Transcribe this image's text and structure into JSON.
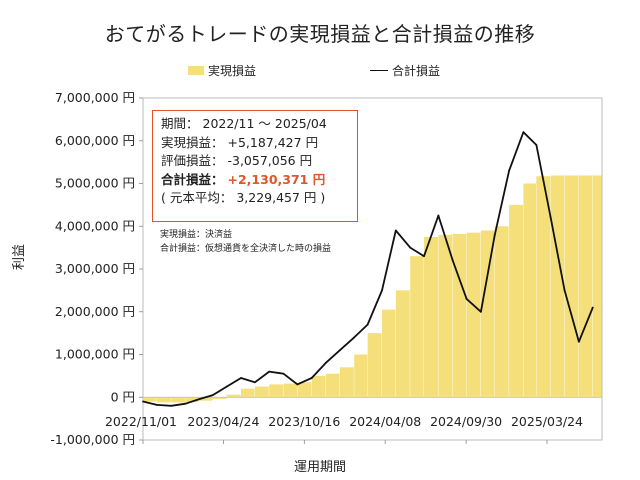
{
  "chart_data": {
    "type": "bar+line",
    "title": "おてがるトレードの実現損益と合計損益の推移",
    "xlabel": "運用期間",
    "ylabel": "利益",
    "ylim": [
      -1000000,
      7000000
    ],
    "y_ticks": [
      "7,000,000 円",
      "6,000,000 円",
      "5,000,000 円",
      "4,000,000 円",
      "3,000,000 円",
      "2,000,000 円",
      "1,000,000 円",
      "0 円",
      "-1,000,000 円"
    ],
    "y_tick_values": [
      7000000,
      6000000,
      5000000,
      4000000,
      3000000,
      2000000,
      1000000,
      0,
      -1000000
    ],
    "x_ticks": [
      "2022/11/01",
      "2023/04/24",
      "2023/10/16",
      "2024/04/08",
      "2024/09/30",
      "2025/03/24"
    ],
    "grid": false,
    "legend": {
      "position": "top",
      "bar_label": "実現損益",
      "line_label": "合計損益"
    },
    "colors": {
      "bar": "#f4df7a",
      "line": "#111111",
      "accent": "#e0552b"
    },
    "period": {
      "start": "2022/11/01",
      "end": "2025/07/21"
    },
    "series": [
      {
        "name": "実現損益",
        "type": "bar",
        "points": [
          [
            "2022/11/01",
            -100000
          ],
          [
            "2022/12/01",
            -120000
          ],
          [
            "2023/01/01",
            -120000
          ],
          [
            "2023/02/01",
            -110000
          ],
          [
            "2023/03/01",
            -80000
          ],
          [
            "2023/04/01",
            -40000
          ],
          [
            "2023/05/01",
            60000
          ],
          [
            "2023/06/01",
            200000
          ],
          [
            "2023/07/01",
            250000
          ],
          [
            "2023/08/01",
            300000
          ],
          [
            "2023/09/01",
            320000
          ],
          [
            "2023/10/01",
            350000
          ],
          [
            "2023/11/01",
            500000
          ],
          [
            "2023/12/01",
            550000
          ],
          [
            "2024/01/01",
            700000
          ],
          [
            "2024/02/01",
            1000000
          ],
          [
            "2024/03/01",
            1500000
          ],
          [
            "2024/04/01",
            2050000
          ],
          [
            "2024/05/01",
            2500000
          ],
          [
            "2024/06/01",
            3300000
          ],
          [
            "2024/07/01",
            3750000
          ],
          [
            "2024/08/01",
            3800000
          ],
          [
            "2024/09/01",
            3820000
          ],
          [
            "2024/10/01",
            3850000
          ],
          [
            "2024/11/01",
            3900000
          ],
          [
            "2024/12/01",
            4000000
          ],
          [
            "2025/01/01",
            4500000
          ],
          [
            "2025/02/01",
            5000000
          ],
          [
            "2025/03/01",
            5170000
          ],
          [
            "2025/04/01",
            5187427
          ],
          [
            "2025/05/01",
            5187427
          ],
          [
            "2025/06/01",
            5187427
          ],
          [
            "2025/07/01",
            5187427
          ]
        ]
      },
      {
        "name": "合計損益",
        "type": "line",
        "points": [
          [
            "2022/11/01",
            -100000
          ],
          [
            "2022/12/01",
            -180000
          ],
          [
            "2023/01/01",
            -200000
          ],
          [
            "2023/02/01",
            -150000
          ],
          [
            "2023/03/01",
            -50000
          ],
          [
            "2023/04/01",
            50000
          ],
          [
            "2023/05/01",
            250000
          ],
          [
            "2023/06/01",
            450000
          ],
          [
            "2023/07/01",
            350000
          ],
          [
            "2023/08/01",
            600000
          ],
          [
            "2023/09/01",
            550000
          ],
          [
            "2023/10/01",
            300000
          ],
          [
            "2023/11/01",
            450000
          ],
          [
            "2023/12/01",
            800000
          ],
          [
            "2024/01/01",
            1100000
          ],
          [
            "2024/02/01",
            1400000
          ],
          [
            "2024/03/01",
            1700000
          ],
          [
            "2024/04/01",
            2500000
          ],
          [
            "2024/05/01",
            3900000
          ],
          [
            "2024/06/01",
            3500000
          ],
          [
            "2024/07/01",
            3300000
          ],
          [
            "2024/08/01",
            4250000
          ],
          [
            "2024/09/01",
            3200000
          ],
          [
            "2024/10/01",
            2300000
          ],
          [
            "2024/11/01",
            2000000
          ],
          [
            "2024/12/01",
            3800000
          ],
          [
            "2025/01/01",
            5300000
          ],
          [
            "2025/02/01",
            6200000
          ],
          [
            "2025/03/01",
            5900000
          ],
          [
            "2025/04/01",
            4200000
          ],
          [
            "2025/05/01",
            2500000
          ],
          [
            "2025/06/01",
            1300000
          ],
          [
            "2025/07/01",
            2100000
          ]
        ]
      }
    ]
  },
  "info_box": {
    "period_label": "期間：",
    "period_value": "2022/11 ～ 2025/04",
    "realized_label": "実現損益：",
    "realized_value": "+5,187,427 円",
    "unrealized_label": "評価損益：",
    "unrealized_value": "-3,057,056 円",
    "total_label": "合計損益：",
    "total_value": "+2,130,371 円",
    "avg_label": "( 元本平均：",
    "avg_value": "3,229,457 円 )"
  },
  "notes": {
    "line1": "実現損益：決済益",
    "line2": "合計損益：仮想通貨を全決済した時の損益"
  }
}
